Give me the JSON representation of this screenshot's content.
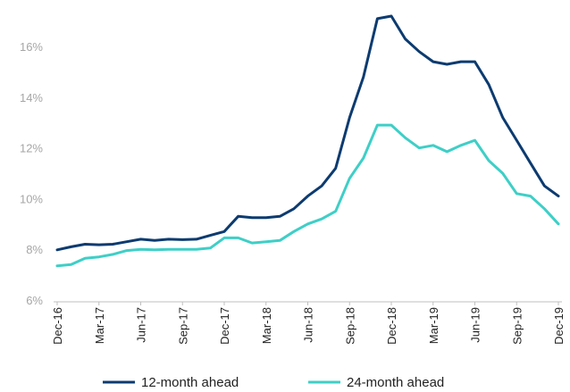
{
  "chart_data": {
    "type": "line",
    "categories": [
      "Dec-16",
      null,
      null,
      "Mar-17",
      null,
      null,
      "Jun-17",
      null,
      null,
      "Sep-17",
      null,
      null,
      "Dec-17",
      null,
      null,
      "Mar-18",
      null,
      null,
      "Jun-18",
      null,
      null,
      "Sep-18",
      null,
      null,
      "Dec-18",
      null,
      null,
      "Mar-19",
      null,
      null,
      "Jun-19",
      null,
      null,
      "Sep-19",
      null,
      null,
      "Dec-19"
    ],
    "series": [
      {
        "name": "12-month ahead",
        "color": "#0c3b70",
        "values": [
          7.98,
          8.1,
          8.2,
          8.18,
          8.2,
          8.3,
          8.4,
          8.35,
          8.4,
          8.38,
          8.4,
          8.55,
          8.7,
          9.3,
          9.25,
          9.25,
          9.3,
          9.6,
          10.1,
          10.5,
          11.2,
          13.2,
          14.8,
          17.1,
          17.2,
          16.3,
          15.8,
          15.4,
          15.3,
          15.4,
          15.4,
          14.5,
          13.2,
          12.3,
          11.4,
          10.5,
          10.1
        ]
      },
      {
        "name": "24-month ahead",
        "color": "#3ecfc7",
        "values": [
          7.35,
          7.4,
          7.65,
          7.7,
          7.8,
          7.95,
          8.0,
          7.98,
          8.0,
          8.0,
          8.0,
          8.05,
          8.45,
          8.45,
          8.25,
          8.3,
          8.35,
          8.7,
          9.0,
          9.2,
          9.5,
          10.8,
          11.6,
          12.9,
          12.9,
          12.4,
          12.0,
          12.1,
          11.85,
          12.1,
          12.3,
          11.5,
          11.0,
          10.2,
          10.1,
          9.6,
          9.0
        ]
      }
    ],
    "ylim": [
      6,
      17.8
    ],
    "yticks": [
      {
        "value": 6,
        "label": "6%"
      },
      {
        "value": 8,
        "label": "8%"
      },
      {
        "value": 10,
        "label": "10%"
      },
      {
        "value": 12,
        "label": "12%"
      },
      {
        "value": 14,
        "label": "14%"
      },
      {
        "value": 16,
        "label": "16%"
      }
    ],
    "grid": false,
    "legend": "bottom"
  }
}
